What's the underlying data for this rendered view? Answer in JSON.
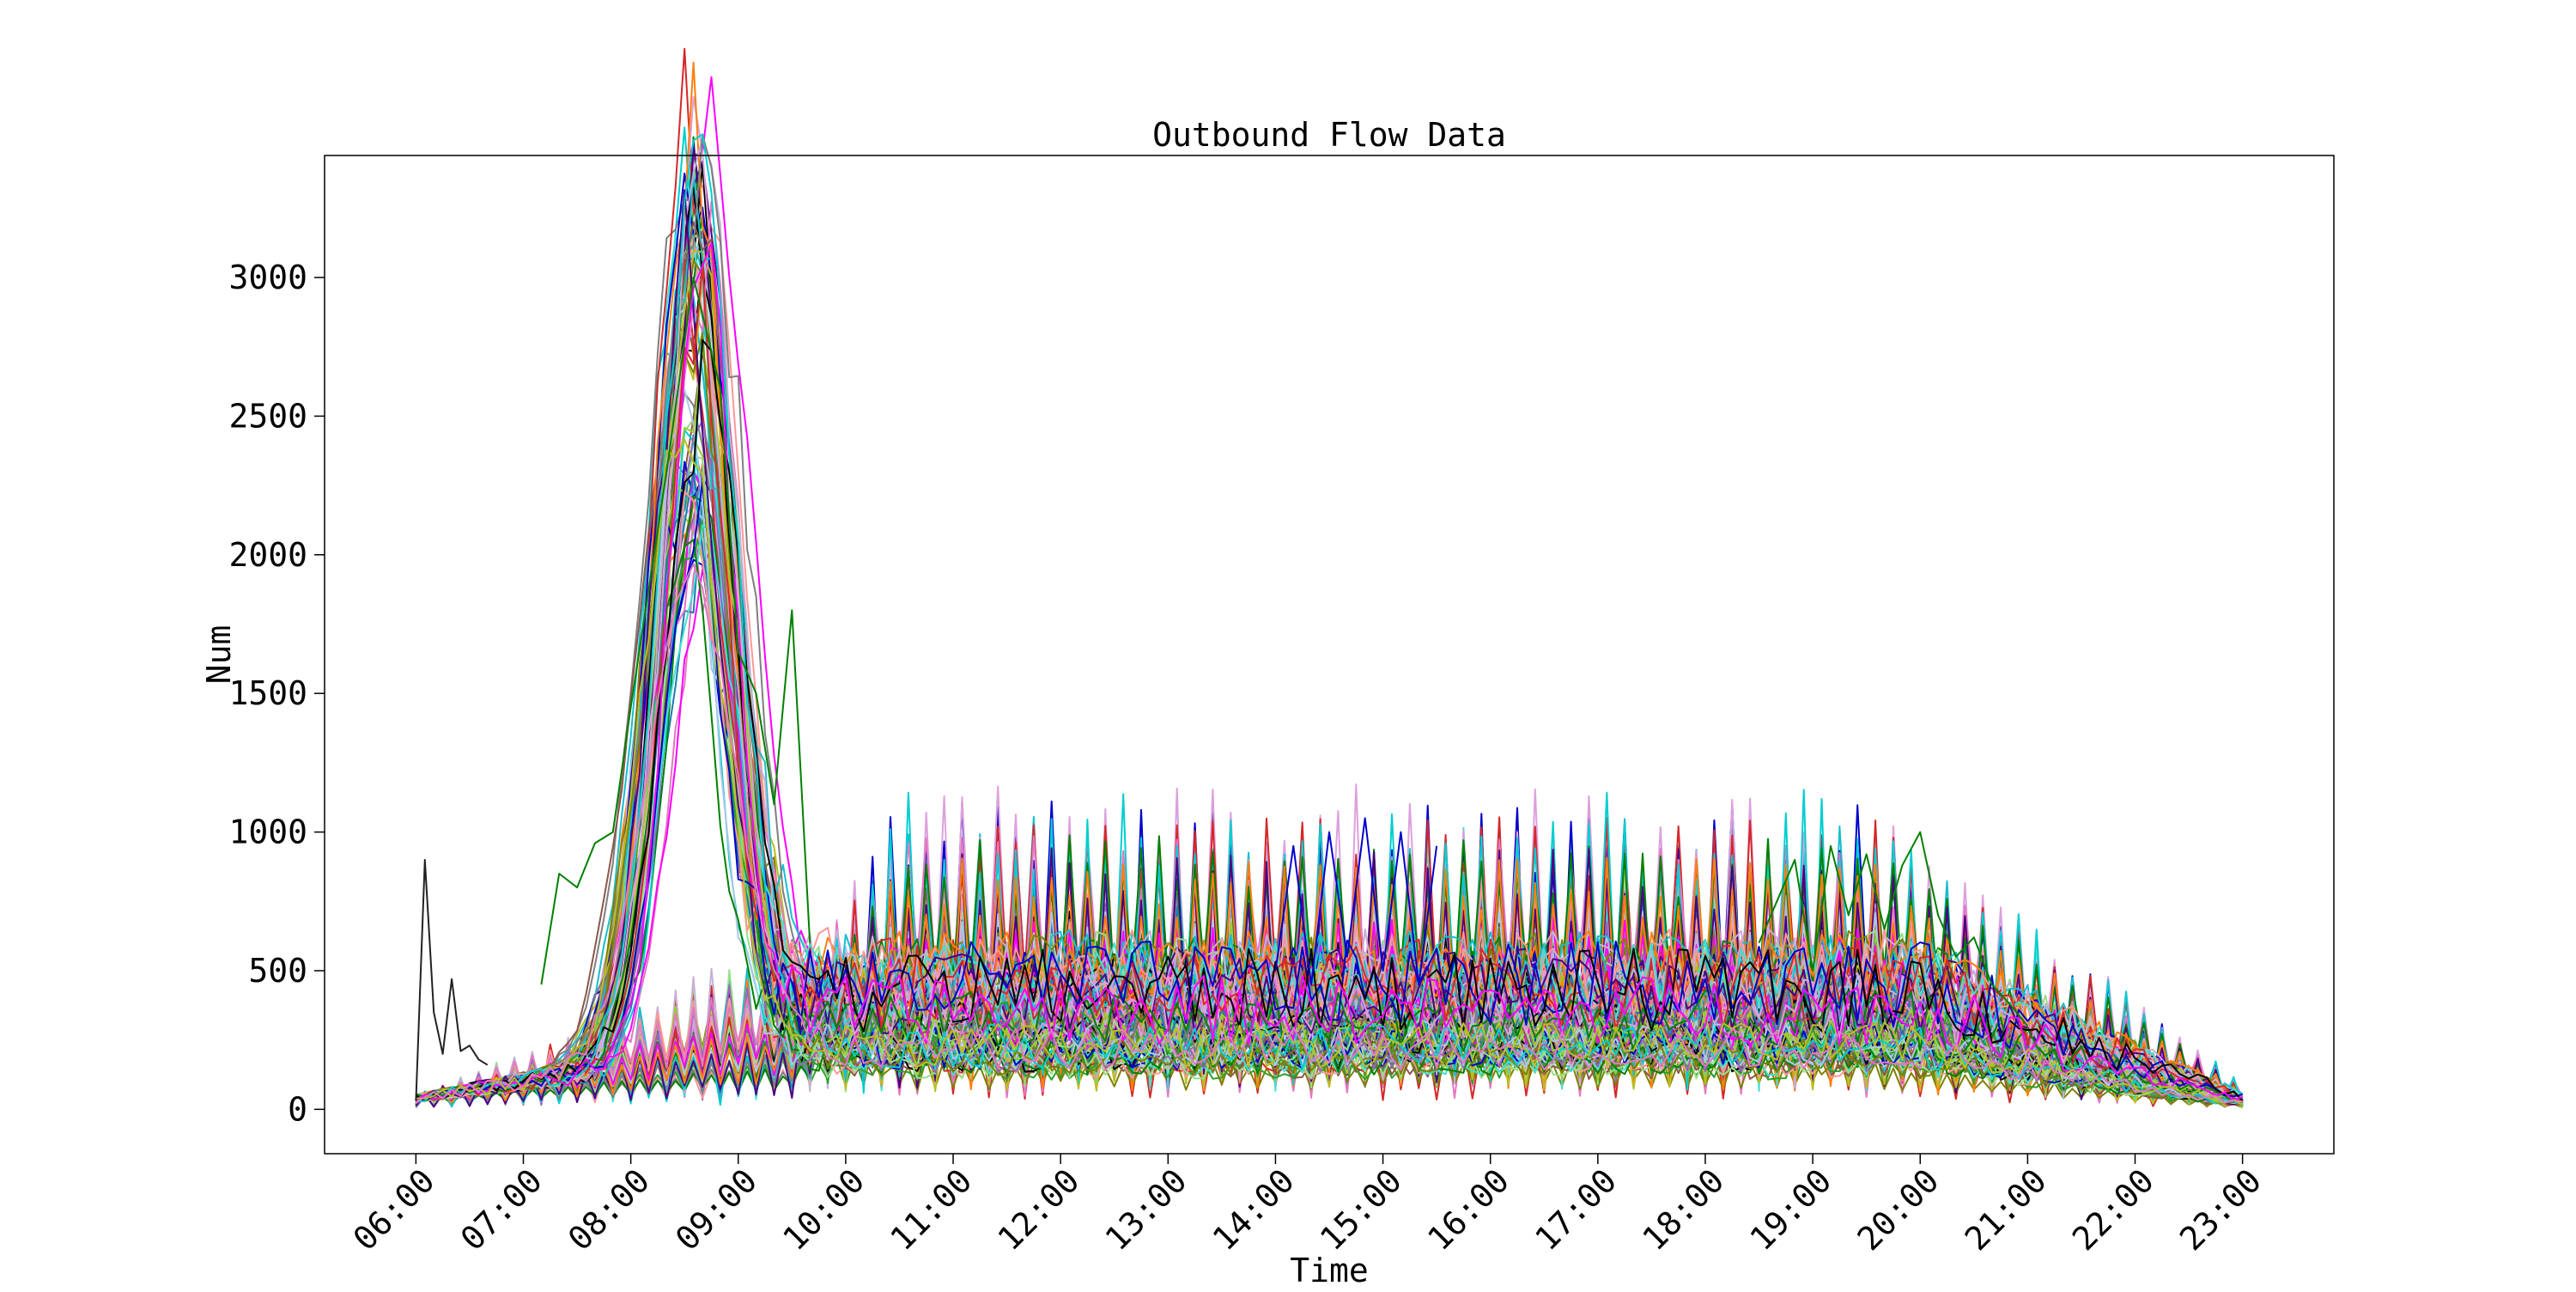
{
  "chart_data": {
    "type": "line",
    "title": "Outbound Flow Data",
    "xlabel": "Time",
    "ylabel": "Num",
    "x_ticks": [
      "06:00",
      "07:00",
      "08:00",
      "09:00",
      "10:00",
      "11:00",
      "12:00",
      "13:00",
      "14:00",
      "15:00",
      "16:00",
      "17:00",
      "18:00",
      "19:00",
      "20:00",
      "21:00",
      "22:00",
      "23:00"
    ],
    "y_ticks": [
      0,
      500,
      1000,
      1500,
      2000,
      2500,
      3000
    ],
    "xlim": [
      "05:09",
      "23:51"
    ],
    "ylim": [
      -160,
      3440
    ],
    "grid": false,
    "legend": "none",
    "series_count": 120,
    "sample_interval_minutes": 5,
    "series_groups": {
      "morning_peak_series": {
        "count": 80,
        "peak_time": "08:35",
        "peak_range": [
          1700,
          3270
        ],
        "baseline_after_peak": [
          150,
          500
        ]
      },
      "allday_series": {
        "count": 40,
        "level_range": [
          100,
          700
        ],
        "peak_range": [
          100,
          350
        ]
      }
    },
    "representative_series": [
      {
        "x": [
          "06:00",
          "06:05",
          "06:10",
          "06:15",
          "06:20",
          "06:25",
          "06:30",
          "06:35",
          "06:40"
        ],
        "y": [
          30,
          900,
          350,
          200,
          470,
          210,
          230,
          180,
          160
        ],
        "color": "#222222"
      },
      {
        "x": [
          "07:10",
          "07:20",
          "07:30",
          "07:40",
          "07:50",
          "08:00",
          "08:20",
          "08:35",
          "08:50",
          "09:00",
          "09:10",
          "09:20",
          "09:30",
          "09:40"
        ],
        "y": [
          450,
          850,
          800,
          960,
          1000,
          1450,
          2300,
          3000,
          2600,
          1650,
          1500,
          1100,
          1800,
          600
        ],
        "color": "#008000"
      },
      {
        "x": [
          "18:30",
          "18:50",
          "19:00",
          "19:10",
          "19:20",
          "19:30",
          "19:40",
          "19:50",
          "20:00",
          "20:10",
          "20:20",
          "20:30",
          "20:40",
          "20:50",
          "21:00"
        ],
        "y": [
          600,
          900,
          500,
          950,
          700,
          920,
          650,
          880,
          1000,
          700,
          550,
          620,
          450,
          380,
          300
        ],
        "color": "#008000"
      },
      {
        "x": [
          "14:00",
          "14:10",
          "14:20",
          "14:30",
          "14:40",
          "14:50",
          "15:00",
          "15:10",
          "15:20",
          "15:30"
        ],
        "y": [
          500,
          950,
          450,
          1000,
          550,
          1050,
          500,
          1000,
          450,
          950
        ],
        "color": "#0000cd"
      }
    ],
    "colors": [
      "#d62728",
      "#008000",
      "#0000cd",
      "#000000",
      "#00ced1",
      "#ff00ff",
      "#bcbd22",
      "#e377c2",
      "#98df8a",
      "#1f77b4",
      "#9467bd",
      "#17becf",
      "#ff7f0e",
      "#8c564b",
      "#2ca02c",
      "#aec7e8",
      "#c5b0d5",
      "#ff9896",
      "#7f7f7f",
      "#40e0d0",
      "#9acd32",
      "#808000",
      "#4b0082",
      "#dda0dd"
    ]
  }
}
